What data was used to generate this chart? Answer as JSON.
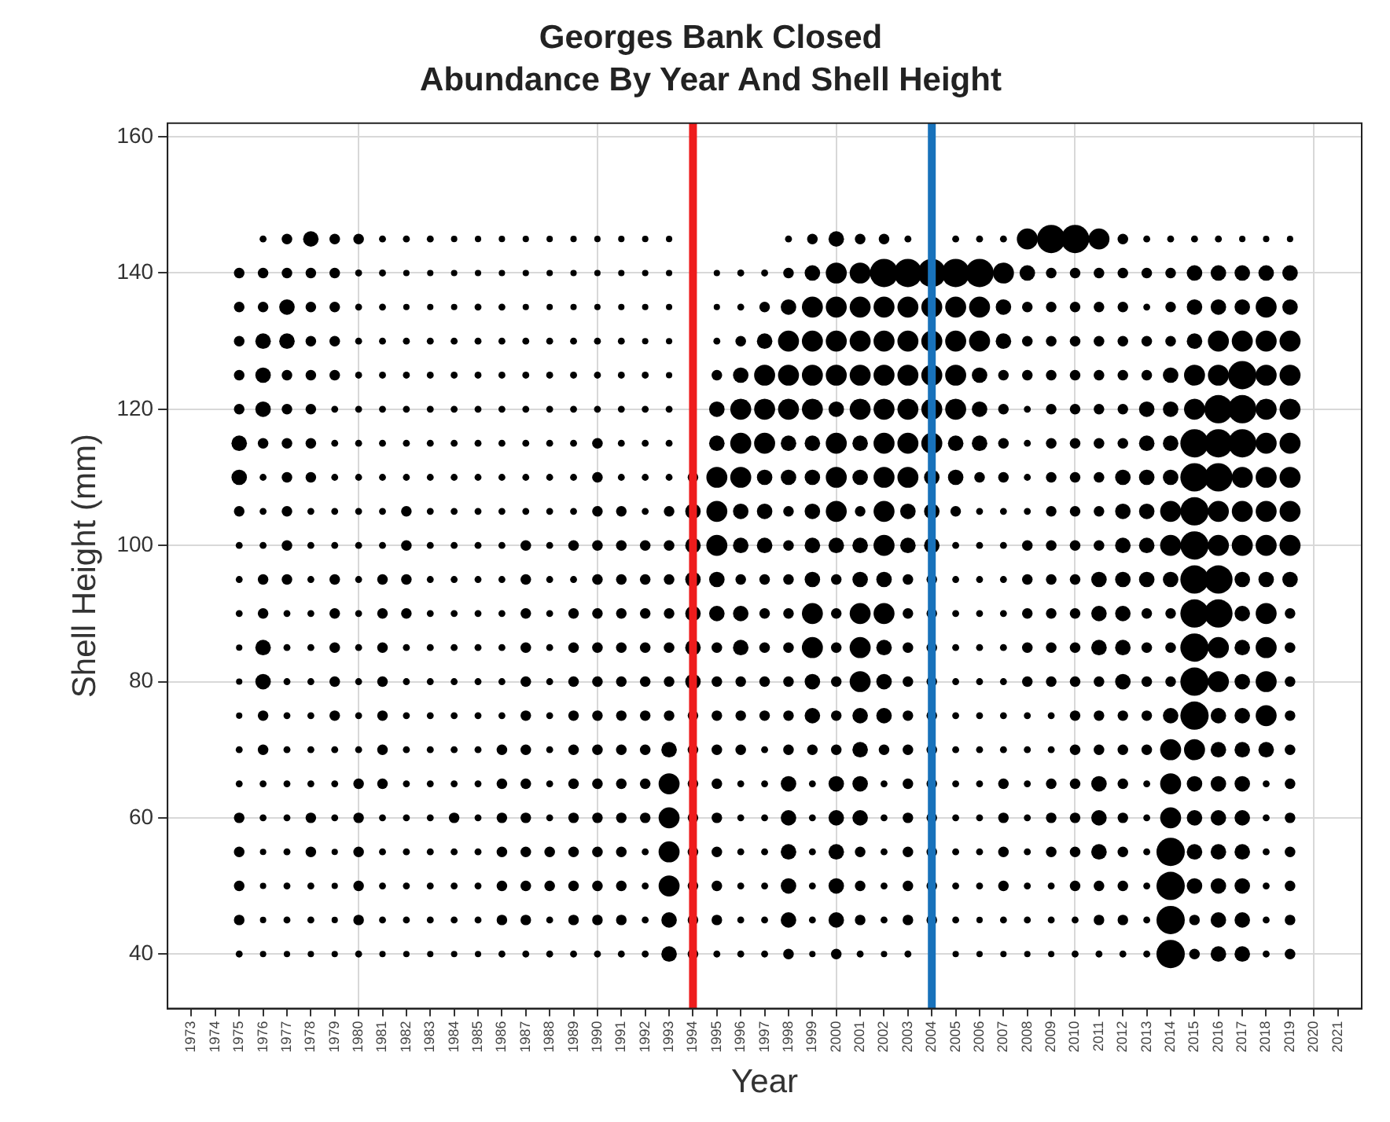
{
  "chart_data": {
    "type": "bubble",
    "title": "Georges Bank Closed",
    "subtitle": "Abundance By Year And Shell Height",
    "xlabel": "Year",
    "ylabel": "Shell Height (mm)",
    "x": [
      1975,
      1976,
      1977,
      1978,
      1979,
      1980,
      1981,
      1982,
      1983,
      1984,
      1985,
      1986,
      1987,
      1988,
      1989,
      1990,
      1991,
      1992,
      1993,
      1994,
      1995,
      1996,
      1997,
      1998,
      1999,
      2000,
      2001,
      2002,
      2003,
      2004,
      2005,
      2006,
      2007,
      2008,
      2009,
      2010,
      2011,
      2012,
      2013,
      2014,
      2015,
      2016,
      2017,
      2018,
      2019
    ],
    "series": [
      {
        "color": "#000000",
        "values": [
          null,
          145,
          145,
          145,
          145,
          145,
          145,
          145,
          145,
          145,
          145,
          145,
          145,
          145,
          145,
          145,
          145,
          145,
          145,
          null,
          null,
          null,
          null,
          145,
          145,
          145,
          145,
          145,
          145,
          null,
          145,
          145,
          145,
          145,
          145,
          145,
          145,
          145,
          145,
          145,
          145,
          145,
          145,
          145,
          145
        ],
        "sizes": [
          null,
          0.06,
          0.14,
          0.3,
          0.14,
          0.14,
          0.06,
          0.06,
          0.06,
          0.05,
          0.05,
          0.05,
          0.05,
          0.05,
          0.05,
          0.05,
          0.05,
          0.05,
          0.05,
          null,
          null,
          null,
          null,
          0.06,
          0.14,
          0.3,
          0.14,
          0.14,
          0.06,
          null,
          0.06,
          0.06,
          0.06,
          0.55,
          1,
          1,
          0.55,
          0.14,
          0.06,
          0.06,
          0.06,
          0.06,
          0.05,
          0.05,
          0.05
        ]
      },
      {
        "color": "#000000",
        "values": [
          140,
          140,
          140,
          140,
          140,
          140,
          140,
          140,
          140,
          140,
          140,
          140,
          140,
          140,
          140,
          140,
          140,
          140,
          140,
          null,
          140,
          140,
          140,
          140,
          140,
          140,
          140,
          140,
          140,
          140,
          140,
          140,
          140,
          140,
          140,
          140,
          140,
          140,
          140,
          140,
          140,
          140,
          140,
          140,
          140
        ],
        "sizes": [
          0.14,
          0.14,
          0.14,
          0.14,
          0.14,
          0.06,
          0.06,
          0.05,
          0.05,
          0.05,
          0.05,
          0.05,
          0.05,
          0.05,
          0.05,
          0.05,
          0.05,
          0.05,
          0.05,
          null,
          0.05,
          0.06,
          0.06,
          0.14,
          0.3,
          0.55,
          0.55,
          1,
          1,
          1,
          1,
          1,
          0.55,
          0.3,
          0.14,
          0.14,
          0.14,
          0.14,
          0.14,
          0.14,
          0.3,
          0.3,
          0.3,
          0.3,
          0.3
        ]
      },
      {
        "color": "#000000",
        "values": [
          135,
          135,
          135,
          135,
          135,
          135,
          135,
          135,
          135,
          135,
          135,
          135,
          135,
          135,
          135,
          135,
          135,
          135,
          135,
          null,
          135,
          135,
          135,
          135,
          135,
          135,
          135,
          135,
          135,
          135,
          135,
          135,
          135,
          135,
          135,
          135,
          135,
          135,
          135,
          135,
          135,
          135,
          135,
          135,
          135
        ],
        "sizes": [
          0.14,
          0.14,
          0.3,
          0.14,
          0.14,
          0.06,
          0.06,
          0.05,
          0.05,
          0.05,
          0.06,
          0.06,
          0.05,
          0.05,
          0.05,
          0.05,
          0.05,
          0.05,
          0.05,
          null,
          0.05,
          0.06,
          0.14,
          0.3,
          0.55,
          0.55,
          0.55,
          0.55,
          0.55,
          0.55,
          0.55,
          0.55,
          0.3,
          0.14,
          0.14,
          0.14,
          0.14,
          0.14,
          0.06,
          0.14,
          0.3,
          0.3,
          0.3,
          0.55,
          0.3
        ]
      },
      {
        "color": "#000000",
        "values": [
          130,
          130,
          130,
          130,
          130,
          130,
          130,
          130,
          130,
          130,
          130,
          130,
          130,
          130,
          130,
          130,
          130,
          130,
          130,
          null,
          130,
          130,
          130,
          130,
          130,
          130,
          130,
          130,
          130,
          130,
          130,
          130,
          130,
          130,
          130,
          130,
          130,
          130,
          130,
          130,
          130,
          130,
          130,
          130,
          130
        ],
        "sizes": [
          0.14,
          0.3,
          0.3,
          0.14,
          0.14,
          0.06,
          0.06,
          0.06,
          0.06,
          0.06,
          0.06,
          0.06,
          0.06,
          0.06,
          0.06,
          0.06,
          0.06,
          0.05,
          0.05,
          null,
          0.06,
          0.14,
          0.3,
          0.55,
          0.55,
          0.55,
          0.55,
          0.55,
          0.55,
          0.55,
          0.55,
          0.55,
          0.3,
          0.14,
          0.14,
          0.14,
          0.14,
          0.14,
          0.14,
          0.14,
          0.3,
          0.55,
          0.55,
          0.55,
          0.55
        ]
      },
      {
        "color": "#000000",
        "values": [
          125,
          125,
          125,
          125,
          125,
          125,
          125,
          125,
          125,
          125,
          125,
          125,
          125,
          125,
          125,
          125,
          125,
          125,
          125,
          null,
          125,
          125,
          125,
          125,
          125,
          125,
          125,
          125,
          125,
          125,
          125,
          125,
          125,
          125,
          125,
          125,
          125,
          125,
          125,
          125,
          125,
          125,
          125,
          125,
          125
        ],
        "sizes": [
          0.14,
          0.3,
          0.14,
          0.14,
          0.14,
          0.06,
          0.06,
          0.06,
          0.06,
          0.06,
          0.06,
          0.06,
          0.06,
          0.06,
          0.06,
          0.06,
          0.06,
          0.06,
          0.05,
          null,
          0.14,
          0.3,
          0.55,
          0.55,
          0.55,
          0.55,
          0.55,
          0.55,
          0.55,
          0.55,
          0.55,
          0.3,
          0.14,
          0.14,
          0.14,
          0.14,
          0.14,
          0.14,
          0.14,
          0.3,
          0.55,
          0.55,
          1,
          0.55,
          0.55
        ]
      },
      {
        "color": "#000000",
        "values": [
          120,
          120,
          120,
          120,
          120,
          120,
          120,
          120,
          120,
          120,
          120,
          120,
          120,
          120,
          120,
          120,
          120,
          120,
          120,
          null,
          120,
          120,
          120,
          120,
          120,
          120,
          120,
          120,
          120,
          120,
          120,
          120,
          120,
          120,
          120,
          120,
          120,
          120,
          120,
          120,
          120,
          120,
          120,
          120,
          120
        ],
        "sizes": [
          0.14,
          0.3,
          0.14,
          0.14,
          0.06,
          0.06,
          0.06,
          0.06,
          0.06,
          0.06,
          0.06,
          0.06,
          0.06,
          0.06,
          0.06,
          0.06,
          0.06,
          0.06,
          0.06,
          null,
          0.3,
          0.55,
          0.55,
          0.55,
          0.55,
          0.3,
          0.55,
          0.55,
          0.55,
          0.55,
          0.55,
          0.3,
          0.14,
          0.06,
          0.14,
          0.14,
          0.14,
          0.14,
          0.3,
          0.3,
          0.55,
          1,
          1,
          0.55,
          0.55
        ]
      },
      {
        "color": "#000000",
        "values": [
          115,
          115,
          115,
          115,
          115,
          115,
          115,
          115,
          115,
          115,
          115,
          115,
          115,
          115,
          115,
          115,
          115,
          115,
          115,
          null,
          115,
          115,
          115,
          115,
          115,
          115,
          115,
          115,
          115,
          115,
          115,
          115,
          115,
          115,
          115,
          115,
          115,
          115,
          115,
          115,
          115,
          115,
          115,
          115,
          115
        ],
        "sizes": [
          0.3,
          0.14,
          0.14,
          0.14,
          0.06,
          0.06,
          0.06,
          0.06,
          0.06,
          0.06,
          0.06,
          0.06,
          0.06,
          0.06,
          0.06,
          0.14,
          0.06,
          0.06,
          0.06,
          null,
          0.3,
          0.55,
          0.55,
          0.3,
          0.3,
          0.55,
          0.3,
          0.55,
          0.55,
          0.55,
          0.3,
          0.3,
          0.14,
          0.06,
          0.14,
          0.14,
          0.14,
          0.14,
          0.3,
          0.3,
          1,
          1,
          1,
          0.55,
          0.55
        ]
      },
      {
        "color": "#000000",
        "values": [
          110,
          110,
          110,
          110,
          110,
          110,
          110,
          110,
          110,
          110,
          110,
          110,
          110,
          110,
          110,
          110,
          110,
          110,
          110,
          110,
          110,
          110,
          110,
          110,
          110,
          110,
          110,
          110,
          110,
          110,
          110,
          110,
          110,
          110,
          110,
          110,
          110,
          110,
          110,
          110,
          110,
          110,
          110,
          110,
          110
        ],
        "sizes": [
          0.3,
          0.06,
          0.14,
          0.14,
          0.06,
          0.06,
          0.06,
          0.06,
          0.06,
          0.06,
          0.06,
          0.06,
          0.06,
          0.06,
          0.06,
          0.14,
          0.06,
          0.06,
          0.06,
          0.14,
          0.55,
          0.55,
          0.3,
          0.3,
          0.3,
          0.55,
          0.3,
          0.55,
          0.55,
          0.3,
          0.3,
          0.14,
          0.14,
          0.06,
          0.14,
          0.14,
          0.14,
          0.3,
          0.3,
          0.3,
          1,
          1,
          0.55,
          0.55,
          0.55
        ]
      },
      {
        "color": "#000000",
        "values": [
          105,
          105,
          105,
          105,
          105,
          105,
          105,
          105,
          105,
          105,
          105,
          105,
          105,
          105,
          105,
          105,
          105,
          105,
          105,
          105,
          105,
          105,
          105,
          105,
          105,
          105,
          105,
          105,
          105,
          105,
          105,
          105,
          105,
          105,
          105,
          105,
          105,
          105,
          105,
          105,
          105,
          105,
          105,
          105,
          105
        ],
        "sizes": [
          0.14,
          0.06,
          0.14,
          0.06,
          0.06,
          0.06,
          0.06,
          0.14,
          0.06,
          0.06,
          0.06,
          0.06,
          0.06,
          0.06,
          0.06,
          0.14,
          0.14,
          0.06,
          0.14,
          0.3,
          0.55,
          0.3,
          0.3,
          0.14,
          0.3,
          0.55,
          0.14,
          0.55,
          0.3,
          0.3,
          0.14,
          0.06,
          0.06,
          0.06,
          0.14,
          0.14,
          0.14,
          0.3,
          0.3,
          0.55,
          1,
          0.55,
          0.55,
          0.55,
          0.55
        ]
      },
      {
        "color": "#000000",
        "values": [
          100,
          100,
          100,
          100,
          100,
          100,
          100,
          100,
          100,
          100,
          100,
          100,
          100,
          100,
          100,
          100,
          100,
          100,
          100,
          100,
          100,
          100,
          100,
          100,
          100,
          100,
          100,
          100,
          100,
          100,
          100,
          100,
          100,
          100,
          100,
          100,
          100,
          100,
          100,
          100,
          100,
          100,
          100,
          100,
          100
        ],
        "sizes": [
          0.06,
          0.06,
          0.14,
          0.06,
          0.06,
          0.06,
          0.06,
          0.14,
          0.06,
          0.06,
          0.06,
          0.06,
          0.14,
          0.06,
          0.14,
          0.14,
          0.14,
          0.14,
          0.14,
          0.3,
          0.55,
          0.3,
          0.3,
          0.14,
          0.3,
          0.3,
          0.3,
          0.55,
          0.3,
          0.3,
          0.06,
          0.06,
          0.06,
          0.14,
          0.14,
          0.14,
          0.14,
          0.3,
          0.3,
          0.55,
          1,
          0.55,
          0.55,
          0.55,
          0.55
        ]
      },
      {
        "color": "#000000",
        "values": [
          95,
          95,
          95,
          95,
          95,
          95,
          95,
          95,
          95,
          95,
          95,
          95,
          95,
          95,
          95,
          95,
          95,
          95,
          95,
          95,
          95,
          95,
          95,
          95,
          95,
          95,
          95,
          95,
          95,
          95,
          95,
          95,
          95,
          95,
          95,
          95,
          95,
          95,
          95,
          95,
          95,
          95,
          95,
          95,
          95
        ],
        "sizes": [
          0.06,
          0.14,
          0.14,
          0.06,
          0.14,
          0.06,
          0.14,
          0.14,
          0.06,
          0.06,
          0.06,
          0.06,
          0.14,
          0.06,
          0.06,
          0.14,
          0.14,
          0.14,
          0.14,
          0.3,
          0.3,
          0.14,
          0.14,
          0.14,
          0.3,
          0.14,
          0.3,
          0.3,
          0.14,
          0.14,
          0.06,
          0.06,
          0.06,
          0.14,
          0.14,
          0.14,
          0.3,
          0.3,
          0.3,
          0.3,
          1,
          1,
          0.3,
          0.3,
          0.3
        ]
      },
      {
        "color": "#000000",
        "values": [
          90,
          90,
          90,
          90,
          90,
          90,
          90,
          90,
          90,
          90,
          90,
          90,
          90,
          90,
          90,
          90,
          90,
          90,
          90,
          90,
          90,
          90,
          90,
          90,
          90,
          90,
          90,
          90,
          90,
          90,
          90,
          90,
          90,
          90,
          90,
          90,
          90,
          90,
          90,
          90,
          90,
          90,
          90,
          90,
          90
        ],
        "sizes": [
          0.06,
          0.14,
          0.06,
          0.06,
          0.14,
          0.06,
          0.14,
          0.14,
          0.06,
          0.06,
          0.06,
          0.06,
          0.14,
          0.06,
          0.14,
          0.14,
          0.14,
          0.14,
          0.14,
          0.3,
          0.3,
          0.3,
          0.14,
          0.14,
          0.55,
          0.14,
          0.55,
          0.55,
          0.14,
          0.14,
          0.06,
          0.06,
          0.06,
          0.14,
          0.14,
          0.14,
          0.3,
          0.3,
          0.14,
          0.14,
          1,
          1,
          0.3,
          0.55,
          0.14
        ]
      },
      {
        "color": "#000000",
        "values": [
          85,
          85,
          85,
          85,
          85,
          85,
          85,
          85,
          85,
          85,
          85,
          85,
          85,
          85,
          85,
          85,
          85,
          85,
          85,
          85,
          85,
          85,
          85,
          85,
          85,
          85,
          85,
          85,
          85,
          85,
          85,
          85,
          85,
          85,
          85,
          85,
          85,
          85,
          85,
          85,
          85,
          85,
          85,
          85,
          85
        ],
        "sizes": [
          0.05,
          0.3,
          0.06,
          0.06,
          0.14,
          0.06,
          0.14,
          0.06,
          0.06,
          0.06,
          0.06,
          0.06,
          0.14,
          0.06,
          0.14,
          0.14,
          0.14,
          0.14,
          0.14,
          0.3,
          0.14,
          0.3,
          0.14,
          0.14,
          0.55,
          0.14,
          0.55,
          0.3,
          0.14,
          0.14,
          0.06,
          0.06,
          0.06,
          0.14,
          0.14,
          0.14,
          0.3,
          0.3,
          0.14,
          0.14,
          1,
          0.55,
          0.3,
          0.55,
          0.14
        ]
      },
      {
        "color": "#000000",
        "values": [
          80,
          80,
          80,
          80,
          80,
          80,
          80,
          80,
          80,
          80,
          80,
          80,
          80,
          80,
          80,
          80,
          80,
          80,
          80,
          80,
          80,
          80,
          80,
          80,
          80,
          80,
          80,
          80,
          80,
          80,
          80,
          80,
          80,
          80,
          80,
          80,
          80,
          80,
          80,
          80,
          80,
          80,
          80,
          80,
          80
        ],
        "sizes": [
          0.05,
          0.3,
          0.06,
          0.06,
          0.14,
          0.06,
          0.14,
          0.06,
          0.06,
          0.06,
          0.06,
          0.06,
          0.14,
          0.06,
          0.14,
          0.14,
          0.14,
          0.14,
          0.14,
          0.3,
          0.14,
          0.14,
          0.14,
          0.14,
          0.3,
          0.14,
          0.55,
          0.3,
          0.14,
          0.14,
          0.06,
          0.06,
          0.06,
          0.14,
          0.14,
          0.14,
          0.14,
          0.3,
          0.14,
          0.14,
          1,
          0.55,
          0.3,
          0.55,
          0.14
        ]
      },
      {
        "color": "#000000",
        "values": [
          75,
          75,
          75,
          75,
          75,
          75,
          75,
          75,
          75,
          75,
          75,
          75,
          75,
          75,
          75,
          75,
          75,
          75,
          75,
          75,
          75,
          75,
          75,
          75,
          75,
          75,
          75,
          75,
          75,
          75,
          75,
          75,
          75,
          75,
          75,
          75,
          75,
          75,
          75,
          75,
          75,
          75,
          75,
          75,
          75
        ],
        "sizes": [
          0.05,
          0.14,
          0.06,
          0.06,
          0.14,
          0.06,
          0.14,
          0.06,
          0.06,
          0.06,
          0.06,
          0.06,
          0.14,
          0.06,
          0.14,
          0.14,
          0.14,
          0.14,
          0.14,
          0.14,
          0.14,
          0.14,
          0.14,
          0.14,
          0.3,
          0.14,
          0.3,
          0.3,
          0.14,
          0.14,
          0.06,
          0.06,
          0.06,
          0.06,
          0.06,
          0.14,
          0.14,
          0.14,
          0.14,
          0.3,
          1,
          0.3,
          0.3,
          0.55,
          0.14
        ]
      },
      {
        "color": "#000000",
        "values": [
          70,
          70,
          70,
          70,
          70,
          70,
          70,
          70,
          70,
          70,
          70,
          70,
          70,
          70,
          70,
          70,
          70,
          70,
          70,
          70,
          70,
          70,
          70,
          70,
          70,
          70,
          70,
          70,
          70,
          70,
          70,
          70,
          70,
          70,
          70,
          70,
          70,
          70,
          70,
          70,
          70,
          70,
          70,
          70,
          70
        ],
        "sizes": [
          0.06,
          0.14,
          0.06,
          0.06,
          0.06,
          0.06,
          0.14,
          0.06,
          0.06,
          0.06,
          0.06,
          0.14,
          0.14,
          0.06,
          0.14,
          0.14,
          0.14,
          0.14,
          0.3,
          0.14,
          0.14,
          0.14,
          0.06,
          0.14,
          0.14,
          0.14,
          0.3,
          0.14,
          0.14,
          0.14,
          0.06,
          0.06,
          0.06,
          0.06,
          0.06,
          0.14,
          0.14,
          0.14,
          0.14,
          0.55,
          0.55,
          0.3,
          0.3,
          0.3,
          0.14
        ]
      },
      {
        "color": "#000000",
        "values": [
          65,
          65,
          65,
          65,
          65,
          65,
          65,
          65,
          65,
          65,
          65,
          65,
          65,
          65,
          65,
          65,
          65,
          65,
          65,
          65,
          65,
          65,
          65,
          65,
          65,
          65,
          65,
          65,
          65,
          65,
          65,
          65,
          65,
          65,
          65,
          65,
          65,
          65,
          65,
          65,
          65,
          65,
          65,
          65,
          65
        ],
        "sizes": [
          0.06,
          0.06,
          0.06,
          0.06,
          0.06,
          0.14,
          0.14,
          0.06,
          0.06,
          0.06,
          0.06,
          0.14,
          0.14,
          0.06,
          0.14,
          0.14,
          0.14,
          0.14,
          0.55,
          0.14,
          0.14,
          0.06,
          0.06,
          0.3,
          0.06,
          0.3,
          0.3,
          0.06,
          0.14,
          0.14,
          0.06,
          0.06,
          0.14,
          0.06,
          0.14,
          0.14,
          0.3,
          0.14,
          0.06,
          0.55,
          0.3,
          0.3,
          0.3,
          0.06,
          0.14
        ]
      },
      {
        "color": "#000000",
        "values": [
          60,
          60,
          60,
          60,
          60,
          60,
          60,
          60,
          60,
          60,
          60,
          60,
          60,
          60,
          60,
          60,
          60,
          60,
          60,
          60,
          60,
          60,
          60,
          60,
          60,
          60,
          60,
          60,
          60,
          60,
          60,
          60,
          60,
          60,
          60,
          60,
          60,
          60,
          60,
          60,
          60,
          60,
          60,
          60,
          60
        ],
        "sizes": [
          0.14,
          0.06,
          0.06,
          0.14,
          0.06,
          0.14,
          0.06,
          0.06,
          0.06,
          0.14,
          0.06,
          0.14,
          0.14,
          0.06,
          0.14,
          0.14,
          0.14,
          0.14,
          0.55,
          0.14,
          0.14,
          0.06,
          0.06,
          0.3,
          0.06,
          0.3,
          0.3,
          0.06,
          0.14,
          0.14,
          0.06,
          0.06,
          0.14,
          0.06,
          0.14,
          0.14,
          0.3,
          0.14,
          0.06,
          0.55,
          0.3,
          0.3,
          0.3,
          0.06,
          0.14
        ]
      },
      {
        "color": "#000000",
        "values": [
          55,
          55,
          55,
          55,
          55,
          55,
          55,
          55,
          55,
          55,
          55,
          55,
          55,
          55,
          55,
          55,
          55,
          55,
          55,
          55,
          55,
          55,
          55,
          55,
          55,
          55,
          55,
          55,
          55,
          55,
          55,
          55,
          55,
          55,
          55,
          55,
          55,
          55,
          55,
          55,
          55,
          55,
          55,
          55,
          55
        ],
        "sizes": [
          0.14,
          0.05,
          0.06,
          0.14,
          0.05,
          0.14,
          0.06,
          0.06,
          0.06,
          0.06,
          0.06,
          0.14,
          0.14,
          0.14,
          0.14,
          0.14,
          0.14,
          0.06,
          0.55,
          0.14,
          0.14,
          0.06,
          0.06,
          0.3,
          0.06,
          0.3,
          0.14,
          0.06,
          0.14,
          0.14,
          0.06,
          0.06,
          0.14,
          0.06,
          0.14,
          0.14,
          0.3,
          0.14,
          0.06,
          1,
          0.3,
          0.3,
          0.3,
          0.06,
          0.14
        ]
      },
      {
        "color": "#000000",
        "values": [
          50,
          50,
          50,
          50,
          50,
          50,
          50,
          50,
          50,
          50,
          50,
          50,
          50,
          50,
          50,
          50,
          50,
          50,
          50,
          50,
          50,
          50,
          50,
          50,
          50,
          50,
          50,
          50,
          50,
          50,
          50,
          50,
          50,
          50,
          50,
          50,
          50,
          50,
          50,
          50,
          50,
          50,
          50,
          50,
          50
        ],
        "sizes": [
          0.14,
          0.05,
          0.06,
          0.06,
          0.05,
          0.14,
          0.06,
          0.06,
          0.06,
          0.06,
          0.06,
          0.14,
          0.14,
          0.14,
          0.14,
          0.14,
          0.14,
          0.06,
          0.55,
          0.14,
          0.14,
          0.06,
          0.06,
          0.3,
          0.06,
          0.3,
          0.14,
          0.06,
          0.14,
          0.14,
          0.06,
          0.06,
          0.14,
          0.06,
          0.06,
          0.14,
          0.14,
          0.14,
          0.06,
          1,
          0.3,
          0.3,
          0.3,
          0.06,
          0.14
        ]
      },
      {
        "color": "#000000",
        "values": [
          45,
          45,
          45,
          45,
          45,
          45,
          45,
          45,
          45,
          45,
          45,
          45,
          45,
          45,
          45,
          45,
          45,
          45,
          45,
          45,
          45,
          45,
          45,
          45,
          45,
          45,
          45,
          45,
          45,
          45,
          45,
          45,
          45,
          45,
          45,
          45,
          45,
          45,
          45,
          45,
          45,
          45,
          45,
          45,
          45
        ],
        "sizes": [
          0.14,
          0.05,
          0.06,
          0.06,
          0.05,
          0.14,
          0.06,
          0.06,
          0.06,
          0.06,
          0.06,
          0.14,
          0.14,
          0.06,
          0.14,
          0.14,
          0.14,
          0.06,
          0.3,
          0.14,
          0.14,
          0.06,
          0.06,
          0.3,
          0.06,
          0.3,
          0.14,
          0.06,
          0.14,
          0.14,
          0.06,
          0.05,
          0.06,
          0.06,
          0.06,
          0.06,
          0.14,
          0.14,
          0.06,
          1,
          0.14,
          0.3,
          0.3,
          0.06,
          0.14
        ]
      },
      {
        "color": "#000000",
        "values": [
          40,
          40,
          40,
          40,
          40,
          40,
          40,
          40,
          40,
          40,
          40,
          40,
          40,
          40,
          40,
          40,
          40,
          40,
          40,
          40,
          40,
          40,
          40,
          40,
          40,
          40,
          40,
          40,
          40,
          null,
          40,
          40,
          40,
          40,
          40,
          40,
          40,
          40,
          40,
          40,
          40,
          40,
          40,
          40,
          40
        ],
        "sizes": [
          0.06,
          0.05,
          0.05,
          0.05,
          0.05,
          0.06,
          0.05,
          0.05,
          0.05,
          0.05,
          0.05,
          0.06,
          0.06,
          0.06,
          0.06,
          0.06,
          0.06,
          0.06,
          0.3,
          0.14,
          0.06,
          0.06,
          0.06,
          0.14,
          0.05,
          0.14,
          0.06,
          0.05,
          0.06,
          null,
          0.05,
          0.05,
          0.05,
          0.05,
          0.05,
          0.06,
          0.06,
          0.06,
          0.06,
          1,
          0.14,
          0.3,
          0.3,
          0.06,
          0.14
        ]
      }
    ],
    "xlim": [
      1972,
      2022
    ],
    "xticks": [
      1973,
      1974,
      1975,
      1976,
      1977,
      1978,
      1979,
      1980,
      1981,
      1982,
      1983,
      1984,
      1985,
      1986,
      1987,
      1988,
      1989,
      1990,
      1991,
      1992,
      1993,
      1994,
      1995,
      1996,
      1997,
      1998,
      1999,
      2000,
      2001,
      2002,
      2003,
      2004,
      2005,
      2006,
      2007,
      2008,
      2009,
      2010,
      2011,
      2012,
      2013,
      2014,
      2015,
      2016,
      2017,
      2018,
      2019,
      2020,
      2021
    ],
    "ylim": [
      32,
      162
    ],
    "yticks": [
      40,
      60,
      80,
      100,
      120,
      140,
      160
    ],
    "ref_lines": [
      {
        "axis": "x",
        "value": 1994,
        "color": "#ee1c1c"
      },
      {
        "axis": "x",
        "value": 2004,
        "color": "#1872bb"
      }
    ],
    "grid": true,
    "marker": "circle"
  }
}
